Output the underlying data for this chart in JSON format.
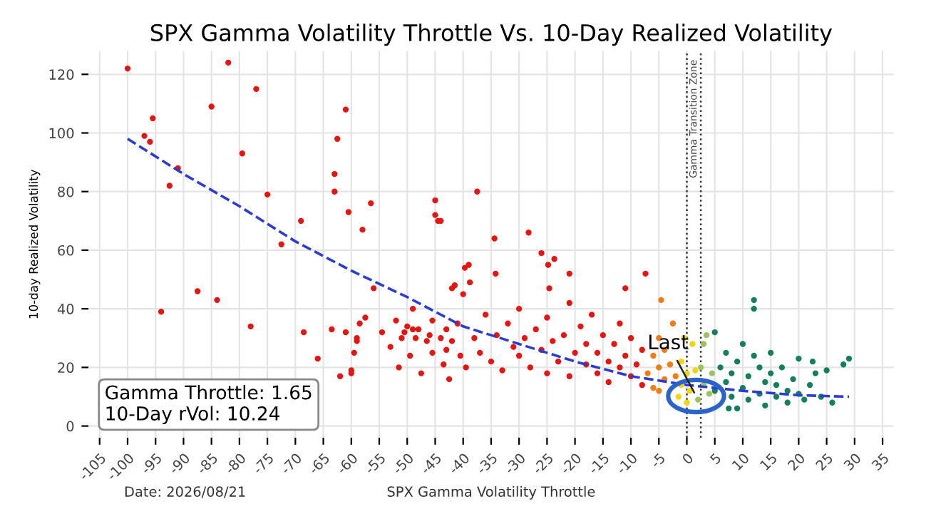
{
  "chart_data": {
    "type": "scatter",
    "title": "SPX Gamma Volatility Throttle Vs. 10-Day Realized Volatility",
    "xlabel": "SPX Gamma Volatility Throttle",
    "ylabel": "10-day Realized Volatility",
    "xlim": [
      -107,
      37
    ],
    "xticks": [
      -105,
      -100,
      -95,
      -90,
      -85,
      -80,
      -75,
      -70,
      -65,
      -60,
      -55,
      -50,
      -45,
      -40,
      -35,
      -30,
      -25,
      -20,
      -15,
      -10,
      -5,
      0,
      5,
      10,
      15,
      20,
      25,
      30,
      35
    ],
    "ylim": [
      -4,
      128
    ],
    "yticks": [
      0,
      20,
      40,
      60,
      80,
      100,
      120
    ],
    "grid": true,
    "marker": "circle",
    "series": [
      {
        "color": "#e8140f",
        "x": [
          -100,
          -97,
          -96,
          -95.5,
          -94,
          -92.5,
          -91,
          -87.5,
          -85,
          -84,
          -82,
          -79.5,
          -78,
          -77,
          -75,
          -72.5,
          -69,
          -68.5,
          -66,
          -63.5,
          -63,
          -63,
          -62.5,
          -62,
          -61,
          -61,
          -60.5,
          -60,
          -60,
          -59.5,
          -59,
          -59,
          -58.5,
          -58,
          -57.5,
          -56.5,
          -56,
          -54.5,
          -53,
          -52,
          -51.5,
          -51,
          -50.5,
          -50,
          -49.5,
          -49,
          -49,
          -48.5,
          -48,
          -47.5,
          -46.5,
          -46,
          -45.5,
          -45.5,
          -45,
          -45,
          -44.5,
          -44,
          -44,
          -43.5,
          -43,
          -43,
          -42.5,
          -42,
          -42,
          -41.5,
          -41,
          -40.5,
          -40,
          -39.5,
          -39,
          -37.5,
          -34.4,
          -28.3,
          -26,
          -24.8,
          -23.7,
          -34.2,
          -21,
          -24.6,
          -11,
          -7.4,
          -39.7,
          -38.8,
          -38,
          -37,
          -36,
          -35,
          -34,
          -33,
          -32,
          -31,
          -30,
          -30,
          -29,
          -28,
          -27,
          -26,
          -25,
          -25,
          -24,
          -23,
          -22,
          -21,
          -21,
          -20,
          -19,
          -18,
          -18,
          -17,
          -16,
          -16,
          -15,
          -14,
          -14,
          -13,
          -12,
          -12,
          -11,
          -10,
          -10,
          -9,
          -8,
          -8
        ],
        "values": [
          122,
          99,
          97,
          105,
          39,
          82,
          88,
          46,
          109,
          43,
          124,
          93,
          34,
          115,
          79,
          62,
          70,
          32,
          23,
          33,
          86,
          80,
          98,
          17,
          32,
          108,
          73,
          18,
          19,
          25,
          30,
          29,
          35,
          67,
          37,
          76,
          47,
          32,
          27,
          36,
          20,
          30,
          32,
          34,
          24,
          40,
          33,
          30,
          33,
          18,
          29,
          31,
          25,
          36,
          77,
          72,
          70,
          70,
          30,
          21,
          26,
          33,
          16,
          29,
          47,
          48,
          35,
          24,
          45,
          20,
          55,
          80,
          64,
          66,
          59,
          55,
          57,
          52,
          52,
          47,
          47,
          52,
          54,
          49,
          30,
          25,
          38,
          22,
          31,
          19,
          35,
          27,
          24,
          40,
          30,
          20,
          33,
          26,
          37,
          18,
          29,
          22,
          31,
          42,
          17,
          25,
          34,
          21,
          28,
          38,
          18,
          25,
          31,
          22,
          15,
          28,
          20,
          35,
          24,
          17,
          30,
          21,
          26,
          14
        ]
      },
      {
        "color": "#f57a10",
        "x": [
          -7,
          -6,
          -6,
          -5,
          -5,
          -4.6,
          -4,
          -4,
          -5,
          -3,
          -2.5,
          -2
        ],
        "values": [
          18,
          24,
          13,
          20,
          30,
          43,
          16,
          26,
          12,
          21,
          35,
          17
        ]
      },
      {
        "color": "#f2d40f",
        "x": [
          -1.5,
          -1,
          -1,
          0,
          0,
          0.5,
          1,
          1.5,
          -0.5
        ],
        "values": [
          10,
          14,
          22,
          8,
          18,
          12,
          28,
          19,
          30
        ]
      },
      {
        "color": "#9cc45a",
        "x": [
          2,
          2.5,
          3,
          3,
          3.5,
          4,
          4.5
        ],
        "values": [
          9,
          20,
          14,
          28,
          31,
          11,
          18
        ]
      },
      {
        "color": "#127f5e",
        "x": [
          5,
          5,
          7.5,
          6,
          7,
          7,
          8,
          8,
          9,
          9,
          10,
          10,
          11,
          11,
          12,
          12,
          12,
          13,
          13,
          14,
          14,
          15,
          15,
          16,
          16,
          17,
          18,
          18,
          19,
          20,
          20,
          21,
          22,
          22.5,
          23,
          24,
          25,
          26,
          28,
          29
        ],
        "values": [
          12,
          32,
          6,
          20,
          15,
          25,
          10,
          18,
          6,
          22,
          13,
          28,
          9,
          17,
          43,
          40,
          24,
          11,
          20,
          7,
          15,
          18,
          25,
          10,
          14,
          20,
          12,
          8,
          16,
          23,
          11,
          9,
          14,
          22,
          18,
          10,
          19,
          8,
          21,
          23
        ]
      },
      {
        "type": "line",
        "color": "#2b3bd6",
        "line_style": "dashed",
        "marker": "none",
        "x": [
          -100,
          -90,
          -80,
          -70,
          -60,
          -50,
          -40,
          -30,
          -20,
          -10,
          0,
          10,
          20,
          29
        ],
        "values": [
          98,
          86,
          75,
          63,
          53,
          44,
          34,
          28,
          22,
          17,
          14,
          12,
          10.5,
          10
        ]
      }
    ],
    "ref_lines": [
      {
        "axis": "x",
        "value": 0,
        "label": "Gamma Transition Zone",
        "color": "#333333",
        "line_style": "dotted"
      },
      {
        "axis": "x",
        "value": 2.5,
        "color": "#333333",
        "line_style": "dotted"
      }
    ],
    "annotations": [
      {
        "text": "Last",
        "x": 1.65,
        "y": 10.24
      },
      "Gamma Throttle: 1.65\n10-Day rVol: 10.24",
      "Date: 2026/08/21"
    ]
  }
}
